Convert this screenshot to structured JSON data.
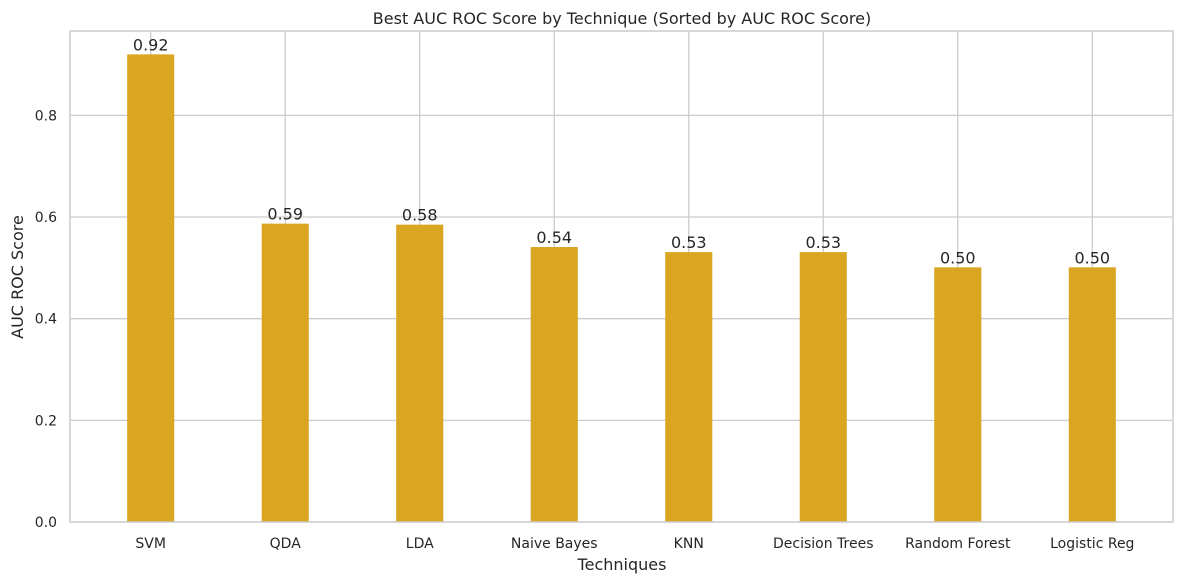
{
  "chart_data": {
    "type": "bar",
    "title": "Best AUC ROC Score by Technique (Sorted by AUC ROC Score)",
    "xlabel": "Techniques",
    "ylabel": "AUC ROC Score",
    "categories": [
      "SVM",
      "QDA",
      "LDA",
      "Naive Bayes",
      "KNN",
      "Decision Trees",
      "Random Forest",
      "Logistic Reg"
    ],
    "values": [
      0.92,
      0.587,
      0.585,
      0.541,
      0.531,
      0.531,
      0.501,
      0.501
    ],
    "value_labels": [
      "0.92",
      "0.59",
      "0.58",
      "0.54",
      "0.53",
      "0.53",
      "0.50",
      "0.50"
    ],
    "ylim": [
      0,
      0.966
    ],
    "yticks": [
      0.0,
      0.2,
      0.4,
      0.6,
      0.8
    ],
    "ytick_labels": [
      "0.0",
      "0.2",
      "0.4",
      "0.6",
      "0.8"
    ],
    "grid": true,
    "legend": "none",
    "colors": {
      "bar": "#DAA520",
      "grid": "#cccccc",
      "axes_edge": "#cccccc",
      "background": "#ffffff",
      "text": "#262626"
    }
  }
}
